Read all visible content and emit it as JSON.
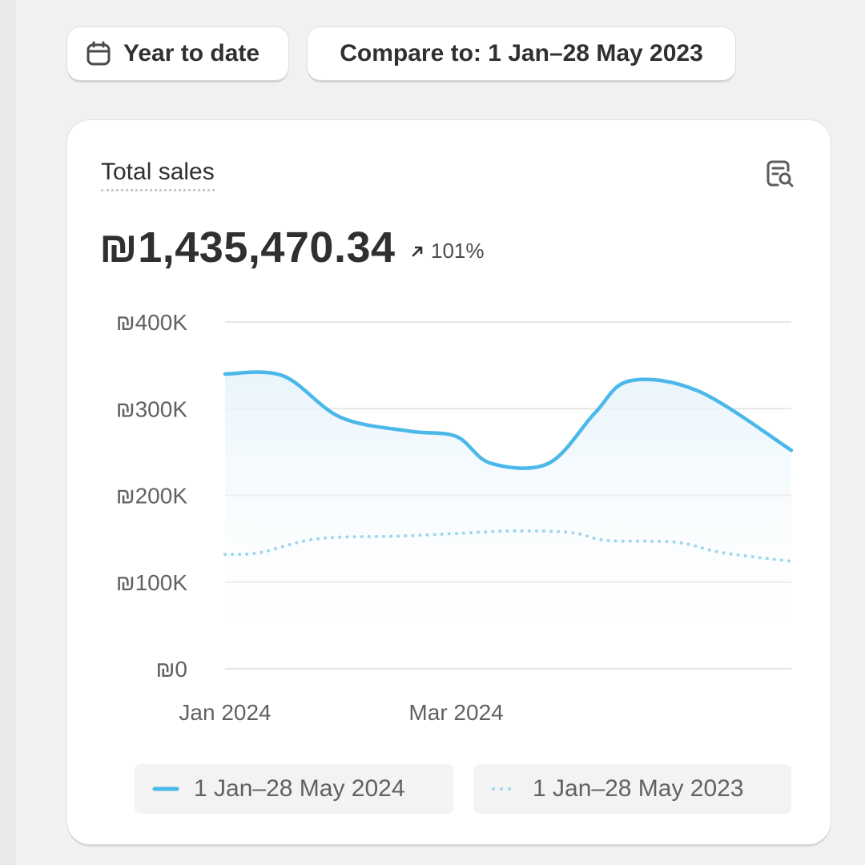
{
  "colors": {
    "current_series": "#4bb8ea",
    "previous_series": "#9fd6ef",
    "grid": "#e6e6e6"
  },
  "toolbar": {
    "date_range_label": "Year to date",
    "compare_label": "Compare to: 1 Jan–28 May 2023"
  },
  "card": {
    "title": "Total sales",
    "total_value": "₪1,435,470.34",
    "change_percent": "101%"
  },
  "chart_data": {
    "type": "line",
    "title": "Total sales",
    "y_tick_labels": [
      "₪400K",
      "₪300K",
      "₪200K",
      "₪100K",
      "₪0"
    ],
    "y_ticks": [
      400000,
      300000,
      200000,
      100000,
      0
    ],
    "ylim": [
      0,
      400000
    ],
    "x_tick_labels": [
      "Jan 2024",
      "Mar 2024"
    ],
    "x_tick_positions": [
      0,
      2
    ],
    "xlim": [
      0,
      4.9
    ],
    "series": [
      {
        "name": "1 Jan–28 May 2024",
        "style": "solid",
        "x": [
          0,
          0.5,
          1.0,
          1.6,
          2.0,
          2.3,
          2.8,
          3.2,
          3.5,
          4.1,
          4.9
        ],
        "values": [
          340000,
          338000,
          290000,
          274000,
          268000,
          237000,
          237000,
          295000,
          332000,
          320000,
          252000
        ]
      },
      {
        "name": "1 Jan–28 May 2023",
        "style": "dotted",
        "x": [
          0,
          0.3,
          0.8,
          1.5,
          2.0,
          2.5,
          3.0,
          3.3,
          3.9,
          4.3,
          4.9
        ],
        "values": [
          132000,
          134000,
          150000,
          153000,
          156000,
          159000,
          157000,
          148000,
          146000,
          134000,
          124000
        ]
      }
    ],
    "legend": [
      "1 Jan–28 May 2024",
      "1 Jan–28 May 2023"
    ]
  }
}
